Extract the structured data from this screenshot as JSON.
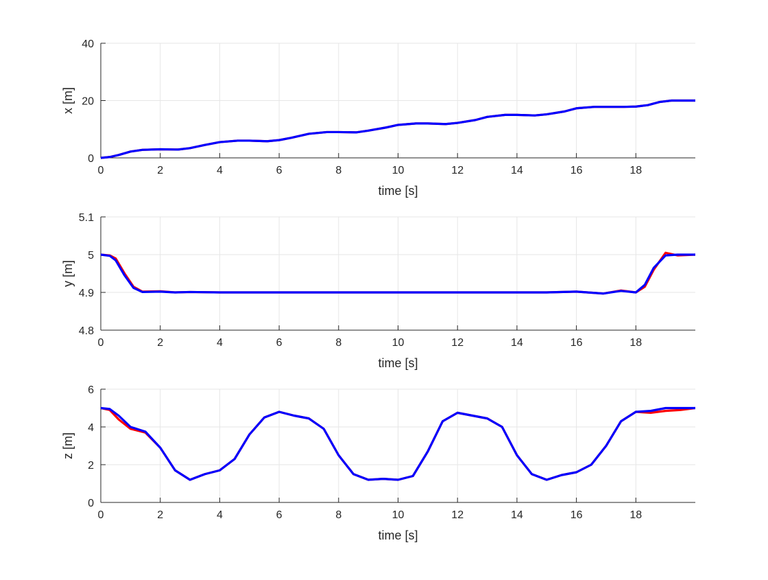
{
  "colors": {
    "reference": "#ff0000",
    "actual": "#0000ff",
    "grid": "#e6e6e6",
    "axis": "#262626"
  },
  "chart_data": [
    {
      "type": "line",
      "xlabel": "time [s]",
      "ylabel": "x [m]",
      "xlim": [
        0,
        20
      ],
      "ylim": [
        0,
        40
      ],
      "xticks": [
        0,
        2,
        4,
        6,
        8,
        10,
        12,
        14,
        16,
        18
      ],
      "yticks": [
        0,
        20,
        40
      ],
      "grid": true,
      "series": [
        {
          "color": "#ff0000",
          "x": [
            0,
            0.3,
            0.6,
            1,
            1.4,
            2,
            2.6,
            3,
            3.5,
            4,
            4.6,
            5,
            5.6,
            6,
            6.4,
            7,
            7.6,
            8,
            8.6,
            9,
            9.6,
            10,
            10.6,
            11,
            11.6,
            12,
            12.6,
            13,
            13.6,
            14,
            14.6,
            15,
            15.6,
            16,
            16.6,
            17,
            17.6,
            18,
            18.4,
            18.8,
            19.2,
            20
          ],
          "y": [
            0,
            0.3,
            1.0,
            2.2,
            2.8,
            3.0,
            2.9,
            3.4,
            4.5,
            5.5,
            6.0,
            6.0,
            5.8,
            6.2,
            7.0,
            8.4,
            9.0,
            9.0,
            8.9,
            9.5,
            10.6,
            11.5,
            12.0,
            12.0,
            11.8,
            12.2,
            13.2,
            14.3,
            15.0,
            15.0,
            14.8,
            15.2,
            16.2,
            17.3,
            17.8,
            17.8,
            17.8,
            17.9,
            18.4,
            19.5,
            20.0,
            20.0
          ]
        },
        {
          "color": "#0000ff",
          "x": [
            0,
            0.3,
            0.6,
            1,
            1.4,
            2,
            2.6,
            3,
            3.5,
            4,
            4.6,
            5,
            5.6,
            6,
            6.4,
            7,
            7.6,
            8,
            8.6,
            9,
            9.6,
            10,
            10.6,
            11,
            11.6,
            12,
            12.6,
            13,
            13.6,
            14,
            14.6,
            15,
            15.6,
            16,
            16.6,
            17,
            17.6,
            18,
            18.4,
            18.8,
            19.2,
            20
          ],
          "y": [
            0,
            0.3,
            1.0,
            2.2,
            2.8,
            3.0,
            2.9,
            3.4,
            4.5,
            5.5,
            6.0,
            6.0,
            5.8,
            6.2,
            7.0,
            8.4,
            9.0,
            9.0,
            8.9,
            9.5,
            10.6,
            11.5,
            12.0,
            12.0,
            11.8,
            12.2,
            13.2,
            14.3,
            15.0,
            15.0,
            14.8,
            15.2,
            16.2,
            17.3,
            17.8,
            17.8,
            17.8,
            17.9,
            18.4,
            19.5,
            20.0,
            20.0
          ]
        }
      ]
    },
    {
      "type": "line",
      "xlabel": "time [s]",
      "ylabel": "y [m]",
      "xlim": [
        0,
        20
      ],
      "ylim": [
        4.8,
        5.1
      ],
      "xticks": [
        0,
        2,
        4,
        6,
        8,
        10,
        12,
        14,
        16,
        18
      ],
      "yticks": [
        4.8,
        4.9,
        5,
        5.1
      ],
      "yticklabels": [
        "4.8",
        "4.9",
        "5",
        "5.1"
      ],
      "grid": true,
      "series": [
        {
          "color": "#ff0000",
          "x": [
            0,
            0.3,
            0.5,
            0.8,
            1.1,
            1.4,
            2,
            2.5,
            3,
            4,
            6,
            8,
            10,
            12,
            14,
            15,
            16,
            16.9,
            17.5,
            18,
            18.3,
            18.6,
            19,
            19.4,
            20
          ],
          "y": [
            5.0,
            4.998,
            4.99,
            4.95,
            4.915,
            4.902,
            4.903,
            4.9,
            4.901,
            4.9,
            4.9,
            4.9,
            4.9,
            4.9,
            4.9,
            4.9,
            4.902,
            4.897,
            4.905,
            4.9,
            4.915,
            4.96,
            5.005,
            4.998,
            5.0
          ]
        },
        {
          "color": "#0000ff",
          "x": [
            0,
            0.3,
            0.5,
            0.8,
            1.1,
            1.4,
            2,
            2.5,
            3,
            4,
            6,
            8,
            10,
            12,
            14,
            15,
            16,
            16.9,
            17.5,
            18,
            18.3,
            18.6,
            19,
            19.4,
            20
          ],
          "y": [
            5.0,
            4.997,
            4.985,
            4.945,
            4.912,
            4.901,
            4.902,
            4.9,
            4.901,
            4.9,
            4.9,
            4.9,
            4.9,
            4.9,
            4.9,
            4.9,
            4.902,
            4.897,
            4.904,
            4.9,
            4.92,
            4.965,
            4.998,
            5.0,
            5.0
          ]
        }
      ]
    },
    {
      "type": "line",
      "xlabel": "time [s]",
      "ylabel": "z [m]",
      "xlim": [
        0,
        20
      ],
      "ylim": [
        0,
        6
      ],
      "xticks": [
        0,
        2,
        4,
        6,
        8,
        10,
        12,
        14,
        16,
        18
      ],
      "yticks": [
        0,
        2,
        4,
        6
      ],
      "grid": true,
      "series": [
        {
          "color": "#ff0000",
          "x": [
            0,
            0.3,
            0.6,
            1,
            1.5,
            2,
            2.5,
            3,
            3.5,
            4,
            4.5,
            5,
            5.5,
            6,
            6.5,
            7,
            7.5,
            8,
            8.5,
            9,
            9.5,
            10,
            10.5,
            11,
            11.5,
            12,
            12.5,
            13,
            13.5,
            14,
            14.5,
            15,
            15.5,
            16,
            16.5,
            17,
            17.5,
            18,
            18.5,
            19,
            19.5,
            20
          ],
          "y": [
            5.0,
            4.9,
            4.4,
            3.9,
            3.7,
            2.9,
            1.7,
            1.2,
            1.5,
            1.7,
            2.3,
            3.6,
            4.5,
            4.8,
            4.6,
            4.45,
            3.9,
            2.5,
            1.5,
            1.2,
            1.25,
            1.2,
            1.4,
            2.7,
            4.3,
            4.75,
            4.6,
            4.45,
            4.0,
            2.5,
            1.5,
            1.2,
            1.45,
            1.6,
            2.0,
            3.0,
            4.3,
            4.8,
            4.75,
            4.85,
            4.9,
            5.0
          ]
        },
        {
          "color": "#0000ff",
          "x": [
            0,
            0.3,
            0.6,
            1,
            1.5,
            2,
            2.5,
            3,
            3.5,
            4,
            4.5,
            5,
            5.5,
            6,
            6.5,
            7,
            7.5,
            8,
            8.5,
            9,
            9.5,
            10,
            10.5,
            11,
            11.5,
            12,
            12.5,
            13,
            13.5,
            14,
            14.5,
            15,
            15.5,
            16,
            16.5,
            17,
            17.5,
            18,
            18.5,
            19,
            19.5,
            20
          ],
          "y": [
            5.0,
            4.95,
            4.6,
            4.0,
            3.75,
            2.9,
            1.7,
            1.2,
            1.5,
            1.7,
            2.3,
            3.6,
            4.5,
            4.8,
            4.6,
            4.45,
            3.9,
            2.5,
            1.5,
            1.2,
            1.25,
            1.2,
            1.4,
            2.7,
            4.3,
            4.75,
            4.6,
            4.45,
            4.0,
            2.5,
            1.5,
            1.2,
            1.45,
            1.6,
            2.0,
            3.0,
            4.3,
            4.8,
            4.85,
            5.0,
            5.0,
            5.0
          ]
        }
      ]
    }
  ]
}
